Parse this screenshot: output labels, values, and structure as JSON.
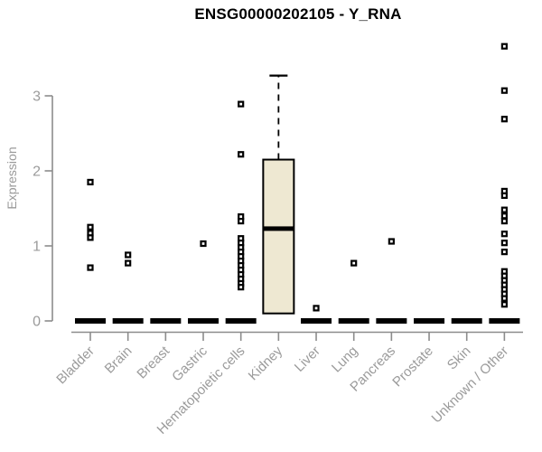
{
  "chart_data": {
    "type": "boxplot",
    "title": "ENSG00000202105 - Y_RNA",
    "ylabel": "Expression",
    "xlabel": "",
    "ylim": [
      0,
      3.8
    ],
    "yticks": [
      0,
      1,
      2,
      3
    ],
    "grid": false,
    "legend": "none",
    "categories": [
      "Bladder",
      "Brain",
      "Breast",
      "Gastric",
      "Hematopoietic cells",
      "Kidney",
      "Liver",
      "Lung",
      "Pancreas",
      "Prostate",
      "Skin",
      "Unknown / Other"
    ],
    "boxes": [
      {
        "category": "Bladder",
        "q1": 0,
        "median": 0,
        "q3": 0,
        "whisker_low": 0,
        "whisker_high": 0,
        "outliers": [
          1.85,
          1.25,
          1.17,
          1.11,
          0.71
        ]
      },
      {
        "category": "Brain",
        "q1": 0,
        "median": 0,
        "q3": 0,
        "whisker_low": 0,
        "whisker_high": 0,
        "outliers": [
          0.88,
          0.77
        ]
      },
      {
        "category": "Breast",
        "q1": 0,
        "median": 0,
        "q3": 0,
        "whisker_low": 0,
        "whisker_high": 0,
        "outliers": []
      },
      {
        "category": "Gastric",
        "q1": 0,
        "median": 0,
        "q3": 0,
        "whisker_low": 0,
        "whisker_high": 0,
        "outliers": [
          1.03
        ]
      },
      {
        "category": "Hematopoietic cells",
        "q1": 0,
        "median": 0,
        "q3": 0,
        "whisker_low": 0,
        "whisker_high": 0,
        "outliers": [
          2.89,
          2.22,
          1.39,
          1.33,
          1.1,
          1.04,
          0.98,
          0.92,
          0.86,
          0.8,
          0.74,
          0.68,
          0.62,
          0.56,
          0.5,
          0.45
        ]
      },
      {
        "category": "Kidney",
        "q1": 0.1,
        "median": 1.23,
        "q3": 2.15,
        "whisker_low": 0.1,
        "whisker_high": 3.27,
        "outliers": []
      },
      {
        "category": "Liver",
        "q1": 0,
        "median": 0,
        "q3": 0,
        "whisker_low": 0,
        "whisker_high": 0,
        "outliers": [
          0.17
        ]
      },
      {
        "category": "Lung",
        "q1": 0,
        "median": 0,
        "q3": 0,
        "whisker_low": 0,
        "whisker_high": 0,
        "outliers": [
          0.77
        ]
      },
      {
        "category": "Pancreas",
        "q1": 0,
        "median": 0,
        "q3": 0,
        "whisker_low": 0,
        "whisker_high": 0,
        "outliers": [
          1.06
        ]
      },
      {
        "category": "Prostate",
        "q1": 0,
        "median": 0,
        "q3": 0,
        "whisker_low": 0,
        "whisker_high": 0,
        "outliers": []
      },
      {
        "category": "Skin",
        "q1": 0,
        "median": 0,
        "q3": 0,
        "whisker_low": 0,
        "whisker_high": 0,
        "outliers": []
      },
      {
        "category": "Unknown / Other",
        "q1": 0,
        "median": 0,
        "q3": 0,
        "whisker_low": 0,
        "whisker_high": 0,
        "outliers": [
          3.66,
          3.07,
          2.69,
          1.73,
          1.67,
          1.48,
          1.4,
          1.33,
          1.16,
          1.04,
          0.92,
          0.66,
          0.6,
          0.54,
          0.48,
          0.42,
          0.36,
          0.3,
          0.22
        ]
      }
    ]
  },
  "colors": {
    "box_fill": "#EEE8D2",
    "box_border": "#000000",
    "median": "#000000",
    "point": "#000000",
    "axis": "#8c8c8c",
    "tick_label": "#9b9b9b",
    "title": "#000000"
  }
}
